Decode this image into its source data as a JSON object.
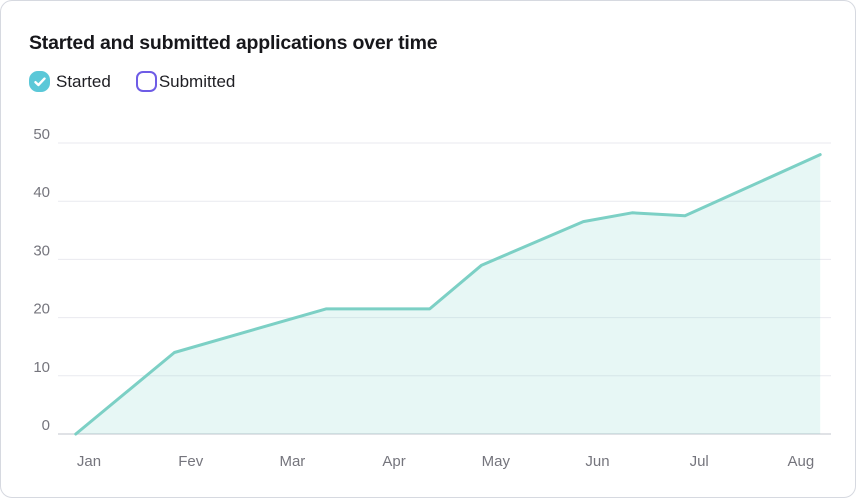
{
  "card": {
    "title": "Started and submitted applications over time"
  },
  "legend": [
    {
      "label": "Started",
      "checked": true,
      "color": "#5bc8d8"
    },
    {
      "label": "Submitted",
      "checked": false,
      "color": "#6e5ce6"
    }
  ],
  "chart_data": {
    "type": "area",
    "title": "Started and submitted applications over time",
    "x_tick_labels": [
      "Jan",
      "Fev",
      "Mar",
      "Apr",
      "May",
      "Jun",
      "Jul",
      "Aug"
    ],
    "x_unit": "months (0 = Jan tick, fractional positions between month ticks)",
    "y_ticks": [
      0,
      10,
      20,
      30,
      40,
      50
    ],
    "ylim": [
      0,
      50
    ],
    "grid": "horizontal",
    "legend_position": "top-left",
    "axis_label_color": "#75757d",
    "gridline_color": "#e9eaef",
    "zeroline_color": "#d6d8dd",
    "series": [
      {
        "name": "Started",
        "visible": true,
        "line_color": "#7cd0c5",
        "fill_color": "#7cd0c5",
        "fill_opacity": 0.18,
        "points": [
          {
            "x": -0.13,
            "y": 0
          },
          {
            "x": 0.84,
            "y": 14
          },
          {
            "x": 2.33,
            "y": 21.5
          },
          {
            "x": 3.35,
            "y": 21.5
          },
          {
            "x": 3.86,
            "y": 29
          },
          {
            "x": 4.86,
            "y": 36.5
          },
          {
            "x": 5.34,
            "y": 38
          },
          {
            "x": 5.86,
            "y": 37.5
          },
          {
            "x": 7.19,
            "y": 48
          }
        ]
      },
      {
        "name": "Submitted",
        "visible": false,
        "line_color": "#6e5ce6",
        "points": []
      }
    ]
  }
}
